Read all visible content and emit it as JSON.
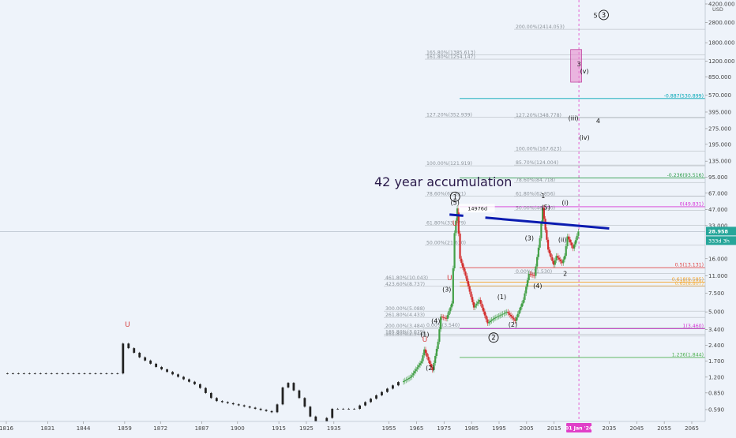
{
  "chart_data": {
    "type": "candlestick",
    "title": "42 year accumulation",
    "currency": "USD",
    "log_scale": true,
    "ylim": [
      0.5,
      4500
    ],
    "xlim": [
      1816,
      2078
    ],
    "y_ticks": [
      {
        "label": "4200.000",
        "value": 4200
      },
      {
        "label": "2800.000",
        "value": 2800
      },
      {
        "label": "1800.000",
        "value": 1800
      },
      {
        "label": "1200.000",
        "value": 1200
      },
      {
        "label": "850.000",
        "value": 850
      },
      {
        "label": "570.000",
        "value": 570
      },
      {
        "label": "395.000",
        "value": 395
      },
      {
        "label": "275.000",
        "value": 275
      },
      {
        "label": "195.000",
        "value": 195
      },
      {
        "label": "135.000",
        "value": 135
      },
      {
        "label": "95.000",
        "value": 95
      },
      {
        "label": "67.000",
        "value": 67
      },
      {
        "label": "47.000",
        "value": 47
      },
      {
        "label": "33.000",
        "value": 33
      },
      {
        "label": "16.000",
        "value": 16
      },
      {
        "label": "11.000",
        "value": 11
      },
      {
        "label": "7.500",
        "value": 7.5
      },
      {
        "label": "5.000",
        "value": 5
      },
      {
        "label": "3.400",
        "value": 3.4
      },
      {
        "label": "2.400",
        "value": 2.4
      },
      {
        "label": "1.700",
        "value": 1.7
      },
      {
        "label": "1.200",
        "value": 1.2
      },
      {
        "label": "0.850",
        "value": 0.85
      },
      {
        "label": "0.590",
        "value": 0.59
      }
    ],
    "x_ticks": [
      {
        "label": "1816",
        "year": 1816
      },
      {
        "label": "1831",
        "year": 1831
      },
      {
        "label": "1844",
        "year": 1844
      },
      {
        "label": "1859",
        "year": 1859
      },
      {
        "label": "1872",
        "year": 1872
      },
      {
        "label": "1887",
        "year": 1887
      },
      {
        "label": "1900",
        "year": 1900
      },
      {
        "label": "1915",
        "year": 1915
      },
      {
        "label": "1925",
        "year": 1925
      },
      {
        "label": "1935",
        "year": 1935
      },
      {
        "label": "1955",
        "year": 1955
      },
      {
        "label": "1965",
        "year": 1965
      },
      {
        "label": "1975",
        "year": 1975
      },
      {
        "label": "1985",
        "year": 1985
      },
      {
        "label": "1995",
        "year": 1995
      },
      {
        "label": "2005",
        "year": 2005
      },
      {
        "label": "2015",
        "year": 2015
      },
      {
        "label": "2035",
        "year": 2035
      },
      {
        "label": "2045",
        "year": 2045
      },
      {
        "label": "2055",
        "year": 2055
      },
      {
        "label": "2065",
        "year": 2065
      }
    ],
    "current_date_label": "01 Jan '24",
    "current_date_year": 2024,
    "last_price": {
      "label": "28.958",
      "value": 28.958,
      "color": "#26a69a"
    },
    "countdown_label": "333d 3h",
    "price_sample": [
      {
        "year": 1816,
        "value": 1.3
      },
      {
        "year": 1859,
        "value": 1.3
      },
      {
        "year": 1860,
        "value": 2.5
      },
      {
        "year": 1866,
        "value": 1.85
      },
      {
        "year": 1872,
        "value": 1.5
      },
      {
        "year": 1887,
        "value": 1.0
      },
      {
        "year": 1893,
        "value": 0.72
      },
      {
        "year": 1903,
        "value": 0.64
      },
      {
        "year": 1915,
        "value": 0.55
      },
      {
        "year": 1919,
        "value": 1.15
      },
      {
        "year": 1925,
        "value": 0.7
      },
      {
        "year": 1932,
        "value": 0.33
      },
      {
        "year": 1935,
        "value": 0.6
      },
      {
        "year": 1944,
        "value": 0.6
      },
      {
        "year": 1955,
        "value": 0.9
      },
      {
        "year": 1963,
        "value": 1.2
      },
      {
        "year": 1967,
        "value": 1.7
      },
      {
        "year": 1968,
        "value": 2.2
      },
      {
        "year": 1970,
        "value": 1.6
      },
      {
        "year": 1971,
        "value": 1.4
      },
      {
        "year": 1973,
        "value": 2.6
      },
      {
        "year": 1974,
        "value": 4.5
      },
      {
        "year": 1976,
        "value": 4.3
      },
      {
        "year": 1978,
        "value": 6.0
      },
      {
        "year": 1979,
        "value": 28.0
      },
      {
        "year": 1980,
        "value": 48.0
      },
      {
        "year": 1981,
        "value": 16.0
      },
      {
        "year": 1983,
        "value": 11.0
      },
      {
        "year": 1986,
        "value": 5.5
      },
      {
        "year": 1988,
        "value": 6.5
      },
      {
        "year": 1991,
        "value": 3.9
      },
      {
        "year": 1993,
        "value": 4.3
      },
      {
        "year": 1998,
        "value": 5.0
      },
      {
        "year": 2001,
        "value": 4.1
      },
      {
        "year": 2004,
        "value": 6.5
      },
      {
        "year": 2006,
        "value": 11.5
      },
      {
        "year": 2008,
        "value": 11.0
      },
      {
        "year": 2010,
        "value": 25.0
      },
      {
        "year": 2011,
        "value": 48.7
      },
      {
        "year": 2012,
        "value": 30.0
      },
      {
        "year": 2013,
        "value": 19.5
      },
      {
        "year": 2015,
        "value": 14.0
      },
      {
        "year": 2016,
        "value": 17.0
      },
      {
        "year": 2018,
        "value": 14.5
      },
      {
        "year": 2019,
        "value": 17.0
      },
      {
        "year": 2020,
        "value": 26.0
      },
      {
        "year": 2022,
        "value": 20.0
      },
      {
        "year": 2023,
        "value": 24.0
      },
      {
        "year": 2024,
        "value": 28.958
      }
    ],
    "horizontal_levels": [
      {
        "label": "-0.887(530.899)",
        "value": 530.899,
        "color": "#00a5b5",
        "side": "right"
      },
      {
        "label": "-0.236(93.516)",
        "value": 93.516,
        "color": "#2e9c4a",
        "side": "right"
      },
      {
        "label": "0(49.831)",
        "value": 49.831,
        "color": "#d633d6",
        "side": "right"
      },
      {
        "label": "0.5(13.131)",
        "value": 13.131,
        "color": "#e04646",
        "side": "right"
      },
      {
        "label": "0.618(9.585)",
        "value": 9.585,
        "color": "#f59f1e",
        "side": "right"
      },
      {
        "label": "0.65(8.807)",
        "value": 8.807,
        "color": "#f5b44a",
        "side": "right"
      },
      {
        "label": "1(3.460)",
        "value": 3.46,
        "color": "#d633d6",
        "side": "right"
      },
      {
        "label": "1.236(1.844)",
        "value": 1.844,
        "color": "#4caf50",
        "side": "right"
      }
    ],
    "fib_extension_labels": [
      {
        "label": "200.00%(2414.053)",
        "value": 2414.053,
        "anchor_year": 2017
      },
      {
        "label": "165.80%(1385.613)",
        "value": 1385.613,
        "anchor_year": 1990
      },
      {
        "label": "161.80%(1254.147)",
        "value": 1254.147,
        "anchor_year": 1990
      },
      {
        "label": "127.20%(352.939)",
        "value": 352.939,
        "anchor_year": 1990
      },
      {
        "label": "127.20%(348.778)",
        "value": 348.778,
        "anchor_year": 2018
      },
      {
        "label": "100.00%(167.623)",
        "value": 167.623,
        "anchor_year": 2018
      },
      {
        "label": "85.70%(124.004)",
        "value": 124.004,
        "anchor_year": 2018
      },
      {
        "label": "100.00%(121.919)",
        "value": 121.919,
        "anchor_year": 1990
      },
      {
        "label": "78.60%(84.718)",
        "value": 84.718,
        "anchor_year": 2018
      },
      {
        "label": "78.60%(62.821)",
        "value": 62.821,
        "anchor_year": 1990
      },
      {
        "label": "61.80%(62.856)",
        "value": 62.856,
        "anchor_year": 2018
      },
      {
        "label": "50.00%(46.170)",
        "value": 46.17,
        "anchor_year": 2018
      },
      {
        "label": "61.80%(33.179)",
        "value": 33.179,
        "anchor_year": 1990
      },
      {
        "label": "50.00%(21.610)",
        "value": 21.61,
        "anchor_year": 1990
      },
      {
        "label": "0.00%(11.530)",
        "value": 11.53,
        "anchor_year": 2018
      },
      {
        "label": "461.80%(10.043)",
        "value": 10.043,
        "anchor_year": 1975
      },
      {
        "label": "423.60%(8.737)",
        "value": 8.737,
        "anchor_year": 1975
      },
      {
        "label": "300.00%(5.088)",
        "value": 5.088,
        "anchor_year": 1975
      },
      {
        "label": "261.80%(4.433)",
        "value": 4.433,
        "anchor_year": 1975
      },
      {
        "label": "200.00%(3.484)",
        "value": 3.484,
        "anchor_year": 1975
      },
      {
        "label": "0.00%(3.540)",
        "value": 3.54,
        "anchor_year": 1990
      },
      {
        "label": "165.80%(3.079)",
        "value": 3.079,
        "anchor_year": 1975
      },
      {
        "label": "161.80%(2.944)",
        "value": 2.944,
        "anchor_year": 1975
      }
    ],
    "wave_labels": [
      {
        "label": "1",
        "circled": true,
        "year": 1979,
        "value": 62
      },
      {
        "label": "2",
        "circled": true,
        "year": 1993,
        "value": 2.85
      },
      {
        "label": "3",
        "circled": true,
        "year": 2033,
        "value": 3300
      },
      {
        "label": "5",
        "circled": false,
        "year": 2030,
        "value": 3100
      },
      {
        "label": "3",
        "circled": false,
        "year": 2024,
        "value": 1070
      },
      {
        "label": "(v)",
        "circled": false,
        "year": 2026,
        "value": 920
      },
      {
        "label": "(iii)",
        "circled": false,
        "year": 2022,
        "value": 330
      },
      {
        "label": "4",
        "circled": false,
        "year": 2031,
        "value": 310
      },
      {
        "label": "(iv)",
        "circled": false,
        "year": 2026,
        "value": 215
      },
      {
        "label": "1",
        "circled": false,
        "year": 2011,
        "value": 60
      },
      {
        "label": "(i)",
        "circled": false,
        "year": 2019,
        "value": 52
      },
      {
        "label": "(5)",
        "circled": false,
        "year": 2012,
        "value": 47
      },
      {
        "label": "(ii)",
        "circled": false,
        "year": 2018,
        "value": 23
      },
      {
        "label": "2",
        "circled": false,
        "year": 2019,
        "value": 11
      },
      {
        "label": "(3)",
        "circled": false,
        "year": 2006,
        "value": 24
      },
      {
        "label": "(4)",
        "circled": false,
        "year": 2009,
        "value": 8.4
      },
      {
        "label": "(1)",
        "circled": false,
        "year": 1996,
        "value": 6.6
      },
      {
        "label": "(2)",
        "circled": false,
        "year": 2000,
        "value": 3.6
      },
      {
        "label": "(3)",
        "circled": false,
        "year": 1976,
        "value": 7.8
      },
      {
        "label": "(4)",
        "circled": false,
        "year": 1972,
        "value": 3.9
      },
      {
        "label": "(2)",
        "circled": false,
        "year": 1970,
        "value": 1.4
      },
      {
        "label": "(1)",
        "circled": false,
        "year": 1968,
        "value": 2.9
      },
      {
        "label": "(5)",
        "circled": false,
        "year": 1979,
        "value": 52
      }
    ],
    "annotations": [
      {
        "label": "14976d",
        "year": 1986,
        "value": 47
      }
    ],
    "u_markers": [
      {
        "year": 1860,
        "value": 3.6
      },
      {
        "year": 1979,
        "value": 33
      },
      {
        "year": 1977,
        "value": 10
      },
      {
        "year": 1968,
        "value": 2.6
      }
    ],
    "trendline": {
      "color": "#0a1bb0",
      "from": {
        "year": 1977,
        "value": 42
      },
      "to": {
        "year": 2035,
        "value": 31
      },
      "gap_start_year": 1982,
      "gap_end_year": 1990
    },
    "target_box": {
      "color": "#e87fc9",
      "from_year": 2021,
      "to_year": 2025,
      "top": 1550,
      "bottom": 760
    }
  }
}
